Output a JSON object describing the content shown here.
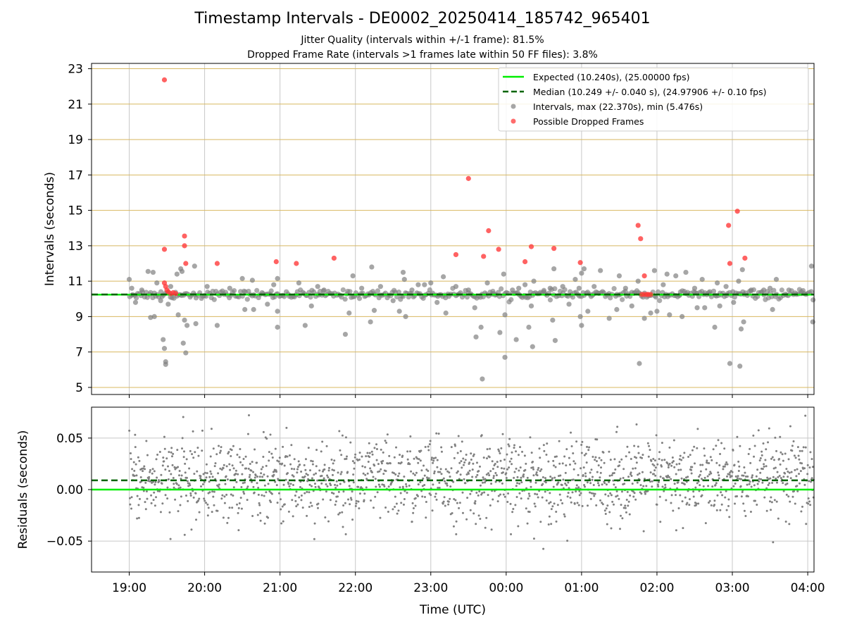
{
  "title": "Timestamp Intervals - DE0002_20250414_185742_965401",
  "subtitle_1": "Jitter Quality (intervals within +/-1 frame): 81.5%",
  "subtitle_2": "Dropped Frame Rate (intervals >1 frames late within 50 FF files): 3.8%",
  "colors": {
    "expected": "#00ee00",
    "median": "#006400",
    "intervals": "#808080",
    "dropped": "#ff3b3b",
    "hgrid_top": "#d8b860",
    "grid": "#c8c8c8"
  },
  "chart_data": [
    {
      "type": "scatter",
      "panel": "top",
      "ylabel": "Intervals (seconds)",
      "xlim": [
        "18:30",
        "04:05"
      ],
      "ylim": [
        4.6,
        23.3
      ],
      "yticks": [
        "5",
        "7",
        "9",
        "11",
        "13",
        "15",
        "17",
        "19",
        "21",
        "23"
      ],
      "grid": true,
      "legend_position": "upper right",
      "legend": [
        "Expected (10.240s), (25.00000 fps)",
        "Median (10.249 +/- 0.040 s), (24.97906 +/- 0.10 fps)",
        "Intervals, max (22.370s), min (5.476s)",
        "Possible Dropped Frames"
      ],
      "expected_interval": 10.24,
      "median_interval": 10.249,
      "series": [
        {
          "name": "Intervals, max (22.370s), min (5.476s)",
          "points": [
            [
              "19:00",
              11.1
            ],
            [
              "19:02",
              10.6
            ],
            [
              "19:05",
              9.8
            ],
            [
              "19:10",
              10.5
            ],
            [
              "19:15",
              11.55
            ],
            [
              "19:17",
              8.95
            ],
            [
              "19:19",
              11.5
            ],
            [
              "19:20",
              9.0
            ],
            [
              "19:22",
              10.9
            ],
            [
              "19:25",
              9.9
            ],
            [
              "19:27",
              7.7
            ],
            [
              "19:28",
              7.2
            ],
            [
              "19:29",
              6.45
            ],
            [
              "19:29",
              6.3
            ],
            [
              "19:31",
              9.7
            ],
            [
              "19:33",
              10.7
            ],
            [
              "19:38",
              11.4
            ],
            [
              "19:39",
              9.1
            ],
            [
              "19:41",
              11.7
            ],
            [
              "19:42",
              11.55
            ],
            [
              "19:43",
              7.5
            ],
            [
              "19:44",
              8.8
            ],
            [
              "19:45",
              6.95
            ],
            [
              "19:46",
              8.5
            ],
            [
              "19:52",
              11.85
            ],
            [
              "19:53",
              8.6
            ],
            [
              "20:02",
              10.7
            ],
            [
              "20:10",
              8.5
            ],
            [
              "20:20",
              10.6
            ],
            [
              "20:30",
              11.15
            ],
            [
              "20:32",
              9.4
            ],
            [
              "20:38",
              11.05
            ],
            [
              "20:39",
              9.4
            ],
            [
              "20:50",
              9.7
            ],
            [
              "20:55",
              10.8
            ],
            [
              "20:58",
              11.15
            ],
            [
              "20:58",
              9.3
            ],
            [
              "20:58",
              8.4
            ],
            [
              "21:15",
              10.9
            ],
            [
              "21:20",
              8.5
            ],
            [
              "21:25",
              9.6
            ],
            [
              "21:30",
              10.7
            ],
            [
              "21:35",
              10.5
            ],
            [
              "21:52",
              8.0
            ],
            [
              "21:55",
              9.2
            ],
            [
              "21:58",
              11.3
            ],
            [
              "22:05",
              10.6
            ],
            [
              "22:12",
              8.7
            ],
            [
              "22:13",
              11.8
            ],
            [
              "22:15",
              9.35
            ],
            [
              "22:20",
              10.7
            ],
            [
              "22:30",
              9.9
            ],
            [
              "22:35",
              9.3
            ],
            [
              "22:38",
              11.5
            ],
            [
              "22:39",
              11.1
            ],
            [
              "22:40",
              9.0
            ],
            [
              "22:45",
              10.5
            ],
            [
              "22:50",
              10.8
            ],
            [
              "22:55",
              10.8
            ],
            [
              "23:00",
              10.9
            ],
            [
              "23:05",
              9.8
            ],
            [
              "23:10",
              11.25
            ],
            [
              "23:12",
              9.2
            ],
            [
              "23:20",
              10.7
            ],
            [
              "23:30",
              10.5
            ],
            [
              "23:35",
              9.5
            ],
            [
              "23:36",
              7.85
            ],
            [
              "23:40",
              8.4
            ],
            [
              "23:41",
              5.476
            ],
            [
              "23:45",
              10.9
            ],
            [
              "23:50",
              10.3
            ],
            [
              "23:55",
              8.1
            ],
            [
              "23:59",
              9.1
            ],
            [
              "23:59",
              6.7
            ],
            [
              "23:58",
              11.4
            ],
            [
              "00:05",
              10.5
            ],
            [
              "00:08",
              7.7
            ],
            [
              "00:10",
              10.6
            ],
            [
              "00:15",
              10.8
            ],
            [
              "00:18",
              8.4
            ],
            [
              "00:20",
              9.6
            ],
            [
              "00:21",
              7.3
            ],
            [
              "00:22",
              11.0
            ],
            [
              "00:30",
              10.4
            ],
            [
              "00:35",
              10.6
            ],
            [
              "00:37",
              8.8
            ],
            [
              "00:38",
              11.7
            ],
            [
              "00:39",
              7.65
            ],
            [
              "00:45",
              10.7
            ],
            [
              "00:50",
              9.7
            ],
            [
              "00:55",
              11.1
            ],
            [
              "00:58",
              10.6
            ],
            [
              "00:59",
              9.0
            ],
            [
              "01:00",
              11.45
            ],
            [
              "01:00",
              8.5
            ],
            [
              "01:02",
              11.7
            ],
            [
              "01:05",
              9.3
            ],
            [
              "01:10",
              10.7
            ],
            [
              "01:15",
              11.6
            ],
            [
              "01:22",
              8.9
            ],
            [
              "01:28",
              9.4
            ],
            [
              "01:30",
              11.3
            ],
            [
              "01:35",
              10.6
            ],
            [
              "01:40",
              9.6
            ],
            [
              "01:45",
              11.0
            ],
            [
              "01:46",
              6.35
            ],
            [
              "01:50",
              8.9
            ],
            [
              "01:55",
              9.2
            ],
            [
              "01:58",
              11.6
            ],
            [
              "02:00",
              9.3
            ],
            [
              "02:05",
              10.8
            ],
            [
              "02:08",
              11.4
            ],
            [
              "02:10",
              9.1
            ],
            [
              "02:15",
              11.3
            ],
            [
              "02:18",
              10.2
            ],
            [
              "02:20",
              9.0
            ],
            [
              "02:23",
              11.5
            ],
            [
              "02:30",
              10.6
            ],
            [
              "02:32",
              9.5
            ],
            [
              "02:36",
              11.1
            ],
            [
              "02:38",
              9.5
            ],
            [
              "02:42",
              10.4
            ],
            [
              "02:46",
              8.4
            ],
            [
              "02:48",
              10.9
            ],
            [
              "02:50",
              9.6
            ],
            [
              "02:55",
              10.7
            ],
            [
              "02:58",
              6.35
            ],
            [
              "03:01",
              9.8
            ],
            [
              "03:05",
              11.0
            ],
            [
              "03:06",
              6.2
            ],
            [
              "03:07",
              8.3
            ],
            [
              "03:08",
              11.65
            ],
            [
              "03:09",
              8.7
            ],
            [
              "03:15",
              10.5
            ],
            [
              "03:25",
              10.5
            ],
            [
              "03:30",
              10.6
            ],
            [
              "03:32",
              9.4
            ],
            [
              "03:35",
              11.1
            ],
            [
              "03:45",
              10.5
            ],
            [
              "03:55",
              10.4
            ],
            [
              "04:03",
              11.85
            ],
            [
              "04:04",
              8.7
            ]
          ]
        },
        {
          "name": "Possible Dropped Frames",
          "points": [
            [
              "19:28",
              22.37
            ],
            [
              "19:28",
              12.8
            ],
            [
              "19:28",
              10.9
            ],
            [
              "19:29",
              10.7
            ],
            [
              "19:30",
              10.5
            ],
            [
              "19:31",
              10.4
            ],
            [
              "19:33",
              10.3
            ],
            [
              "19:35",
              10.35
            ],
            [
              "19:37",
              10.3
            ],
            [
              "19:44",
              13.55
            ],
            [
              "19:44",
              13.0
            ],
            [
              "19:45",
              12.0
            ],
            [
              "20:10",
              12.0
            ],
            [
              "20:57",
              12.1
            ],
            [
              "21:13",
              12.0
            ],
            [
              "21:43",
              12.3
            ],
            [
              "23:20",
              12.5
            ],
            [
              "23:30",
              16.8
            ],
            [
              "23:42",
              12.4
            ],
            [
              "23:46",
              13.85
            ],
            [
              "23:54",
              12.8
            ],
            [
              "00:15",
              12.1
            ],
            [
              "00:20",
              12.95
            ],
            [
              "00:38",
              12.85
            ],
            [
              "00:59",
              12.05
            ],
            [
              "01:45",
              14.15
            ],
            [
              "01:47",
              13.4
            ],
            [
              "01:48",
              10.25
            ],
            [
              "01:50",
              11.3
            ],
            [
              "01:50",
              10.25
            ],
            [
              "01:52",
              10.25
            ],
            [
              "01:53",
              10.25
            ],
            [
              "01:55",
              10.25
            ],
            [
              "02:57",
              14.15
            ],
            [
              "02:58",
              12.0
            ],
            [
              "03:04",
              14.95
            ],
            [
              "03:10",
              12.3
            ]
          ]
        }
      ]
    },
    {
      "type": "scatter",
      "panel": "bottom",
      "xlabel": "Time (UTC)",
      "ylabel": "Residuals (seconds)",
      "xlim": [
        "18:30",
        "04:05"
      ],
      "ylim": [
        -0.08,
        0.08
      ],
      "yticks": [
        "−0.05",
        "0.00",
        "0.05"
      ],
      "xticks": [
        "19:00",
        "20:00",
        "21:00",
        "22:00",
        "23:00",
        "00:00",
        "01:00",
        "02:00",
        "03:00",
        "04:00"
      ],
      "grid": true,
      "expected_residual": 0.0,
      "median_residual": 0.009,
      "residual_spread_sd": 0.02
    }
  ]
}
